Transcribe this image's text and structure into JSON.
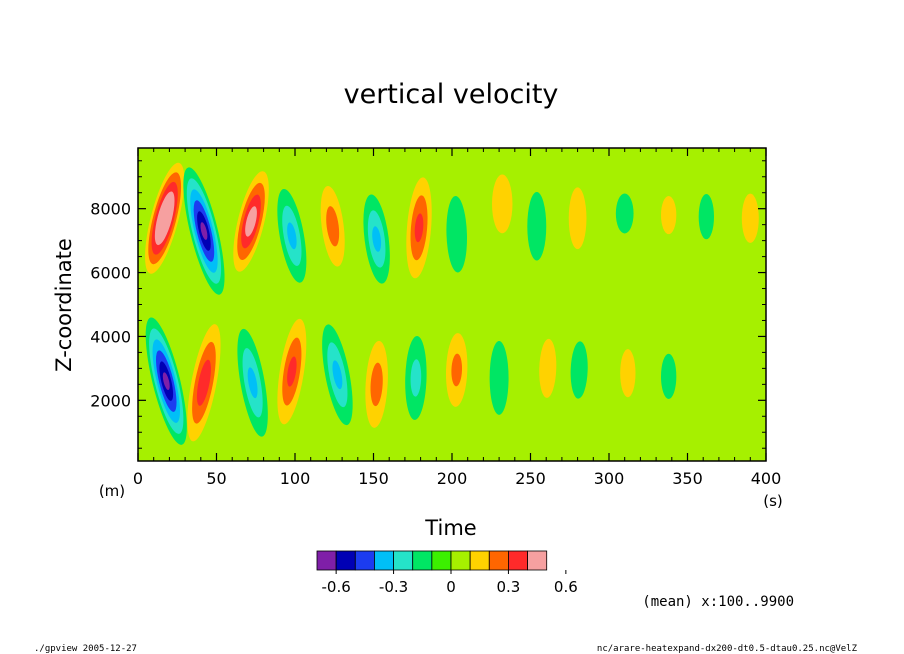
{
  "chart_data": {
    "type": "heatmap",
    "title": "vertical velocity",
    "xlabel": "Time",
    "x_unit": "(s)",
    "ylabel": "Z-coordinate",
    "y_unit": "(m)",
    "xlim": [
      0,
      400
    ],
    "ylim": [
      100,
      9900
    ],
    "x_ticks": [
      0,
      50,
      100,
      150,
      200,
      250,
      300,
      350,
      400
    ],
    "y_ticks": [
      2000,
      4000,
      6000,
      8000
    ],
    "colorbar": {
      "levels": [
        -0.7,
        -0.6,
        -0.5,
        -0.4,
        -0.3,
        -0.2,
        -0.1,
        0,
        0.1,
        0.2,
        0.3,
        0.4,
        0.5,
        0.6,
        0.7
      ],
      "colors": [
        "#7f1fa8",
        "#0000b4",
        "#1c3cf0",
        "#00bff7",
        "#25e3c9",
        "#00e664",
        "#3cf000",
        "#a6f000",
        "#ffd200",
        "#ff6600",
        "#ff2a2a",
        "#f6a0a0"
      ],
      "tick_values": [
        -0.6,
        -0.3,
        0,
        0.3,
        0.6
      ],
      "tick_labels": [
        "-0.6",
        "-0.3",
        "0",
        "0.3",
        "0.6"
      ]
    },
    "background_value": 0.05,
    "features": [
      {
        "t0": 8,
        "z0": 6000,
        "t1": 26,
        "z1": 9400,
        "a": 0.6
      },
      {
        "t0": 8,
        "z0": 4600,
        "t1": 28,
        "z1": 600,
        "a": -0.6
      },
      {
        "t0": 32,
        "z0": 9300,
        "t1": 52,
        "z1": 5300,
        "a": -0.6
      },
      {
        "t0": 34,
        "z0": 500,
        "t1": 50,
        "z1": 4600,
        "a": 0.35
      },
      {
        "t0": 64,
        "z0": 6000,
        "t1": 80,
        "z1": 9200,
        "a": 0.45
      },
      {
        "t0": 66,
        "z0": 4500,
        "t1": 80,
        "z1": 600,
        "a": -0.3
      },
      {
        "t0": 92,
        "z0": 8800,
        "t1": 104,
        "z1": 5500,
        "a": -0.3
      },
      {
        "t0": 92,
        "z0": 1000,
        "t1": 104,
        "z1": 4800,
        "a": 0.3
      },
      {
        "t0": 120,
        "z0": 9000,
        "t1": 128,
        "z1": 5900,
        "a": 0.22
      },
      {
        "t0": 120,
        "z0": 4600,
        "t1": 134,
        "z1": 1000,
        "a": -0.3
      },
      {
        "t0": 148,
        "z0": 8600,
        "t1": 156,
        "z1": 5500,
        "a": -0.3
      },
      {
        "t0": 150,
        "z0": 800,
        "t1": 154,
        "z1": 4200,
        "a": 0.22
      },
      {
        "t0": 176,
        "z0": 5600,
        "t1": 182,
        "z1": 9200,
        "a": 0.3
      },
      {
        "t0": 178,
        "z0": 4400,
        "t1": 176,
        "z1": 1000,
        "a": -0.2
      },
      {
        "t0": 202,
        "z0": 8800,
        "t1": 204,
        "z1": 5600,
        "a": -0.18
      },
      {
        "t0": 202,
        "z0": 1500,
        "t1": 204,
        "z1": 4400,
        "a": 0.2
      },
      {
        "t0": 232,
        "z0": 7000,
        "t1": 232,
        "z1": 9300,
        "a": 0.18
      },
      {
        "t0": 230,
        "z0": 4400,
        "t1": 230,
        "z1": 1000,
        "a": -0.15
      },
      {
        "t0": 254,
        "z0": 9000,
        "t1": 254,
        "z1": 5900,
        "a": -0.15
      },
      {
        "t0": 260,
        "z0": 1500,
        "t1": 262,
        "z1": 4500,
        "a": 0.12
      },
      {
        "t0": 280,
        "z0": 6200,
        "t1": 280,
        "z1": 9200,
        "a": 0.13
      },
      {
        "t0": 282,
        "z0": 4400,
        "t1": 280,
        "z1": 1500,
        "a": -0.12
      },
      {
        "t0": 310,
        "z0": 7000,
        "t1": 310,
        "z1": 8700,
        "a": -0.13
      },
      {
        "t0": 312,
        "z0": 1500,
        "t1": 312,
        "z1": 4200,
        "a": 0.1
      },
      {
        "t0": 338,
        "z0": 6800,
        "t1": 338,
        "z1": 8800,
        "a": 0.1
      },
      {
        "t0": 338,
        "z0": 4000,
        "t1": 338,
        "z1": 1500,
        "a": -0.1
      },
      {
        "t0": 362,
        "z0": 6500,
        "t1": 362,
        "z1": 9000,
        "a": -0.1
      },
      {
        "t0": 390,
        "z0": 6500,
        "t1": 390,
        "z1": 8900,
        "a": 0.12
      }
    ]
  },
  "annotations": {
    "mean_note": "(mean) x:100..9900",
    "footer_left": "./gpview  2005-12-27",
    "footer_right": "nc/arare-heatexpand-dx200-dt0.5-dtau0.25.nc@VelZ"
  }
}
